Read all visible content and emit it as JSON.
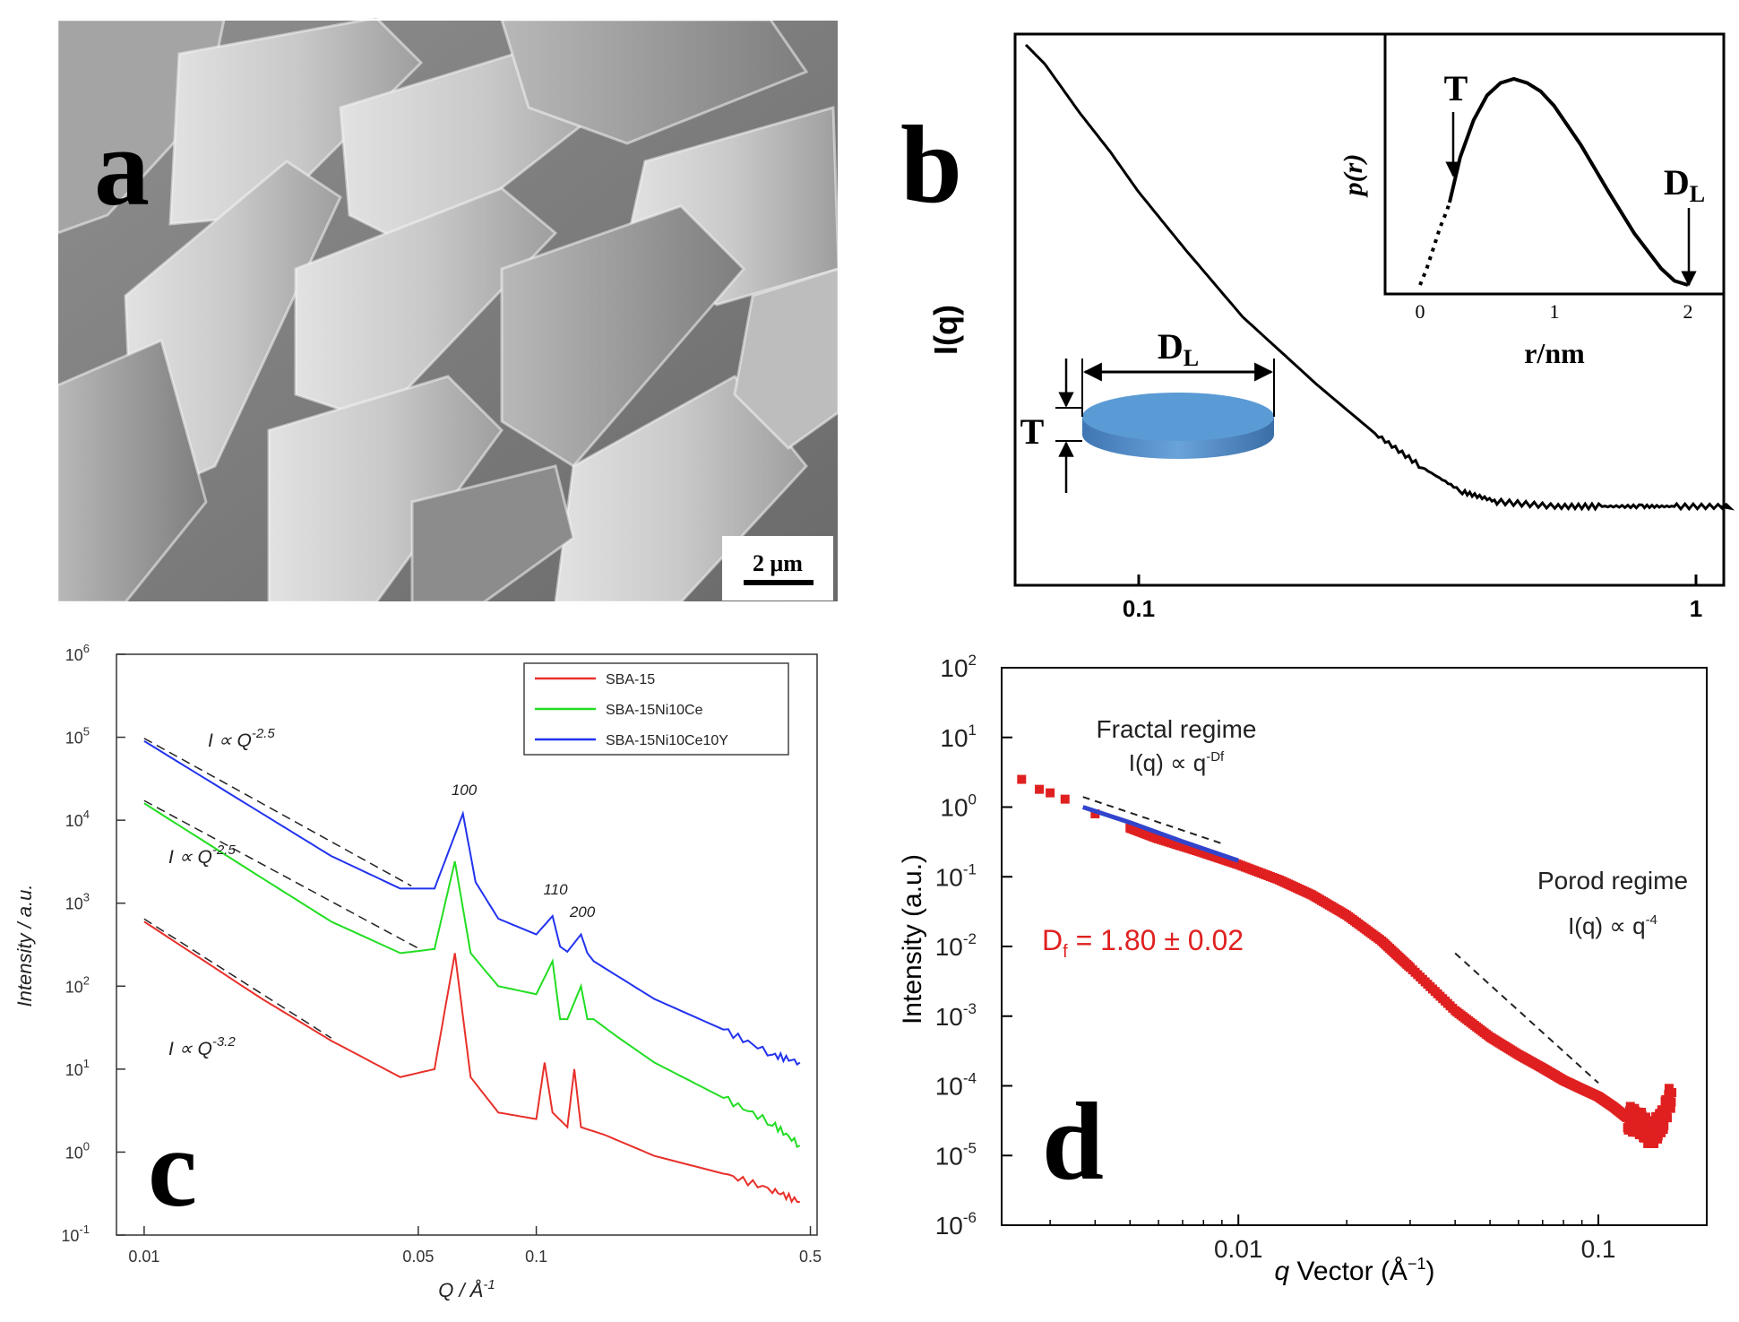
{
  "panels": {
    "a": {
      "letter": "a",
      "scale_bar": "2 μm",
      "image_name": "SEM micrograph of platelet particles"
    },
    "b": {
      "letter": "b",
      "ylabel": "I(q)",
      "inset": {
        "ylabel": "p(r)",
        "xlabel": "r/nm",
        "x_ticks": [
          "0",
          "1",
          "2"
        ],
        "label_T": "T",
        "label_DL": "D",
        "label_DL_sub": "L"
      },
      "disk": {
        "label_DL": "D",
        "label_DL_sub": "L",
        "label_T": "T",
        "color": "#5b9bd5"
      }
    },
    "c": {
      "letter": "c",
      "ylabel": "Intensity / a.u.",
      "xlabel": "Q / Å",
      "xlabel_exp": "-1",
      "y_ticks": [
        {
          "base": "10",
          "exp": "6"
        },
        {
          "base": "10",
          "exp": "5"
        },
        {
          "base": "10",
          "exp": "4"
        },
        {
          "base": "10",
          "exp": "3"
        },
        {
          "base": "10",
          "exp": "2"
        },
        {
          "base": "10",
          "exp": "1"
        },
        {
          "base": "10",
          "exp": "0"
        },
        {
          "base": "10",
          "exp": "-1"
        }
      ],
      "x_ticks": [
        "0.01",
        "0.05",
        "0.1",
        "0.5"
      ],
      "annotations": [
        {
          "text": "I ∝ Q",
          "exp": "-2.5"
        },
        {
          "text": "I ∝ Q",
          "exp": "-2.5"
        },
        {
          "text": "I ∝ Q",
          "exp": "-3.2"
        }
      ],
      "peak_labels": [
        "100",
        "110",
        "200"
      ],
      "legend": [
        {
          "name": "SBA-15",
          "color": "#e8302a"
        },
        {
          "name": "SBA-15Ni10Ce",
          "color": "#22dd22"
        },
        {
          "name": "SBA-15Ni10Ce10Y",
          "color": "#2233ee"
        }
      ]
    },
    "d": {
      "letter": "d",
      "ylabel": "Intensity (a.u.)",
      "xlabel_q": "q",
      "xlabel_rest": " Vector (Å",
      "xlabel_exp": "−1",
      "xlabel_close": ")",
      "y_ticks": [
        {
          "base": "10",
          "exp": "2"
        },
        {
          "base": "10",
          "exp": "1"
        },
        {
          "base": "10",
          "exp": "0"
        },
        {
          "base": "10",
          "exp": "-1"
        },
        {
          "base": "10",
          "exp": "-2"
        },
        {
          "base": "10",
          "exp": "-3"
        },
        {
          "base": "10",
          "exp": "-4"
        },
        {
          "base": "10",
          "exp": "-5"
        },
        {
          "base": "10",
          "exp": "-6"
        }
      ],
      "x_ticks": [
        "0.01",
        "0.1"
      ],
      "fractal_title": "Fractal regime",
      "fractal_law": "I(q) ∝ q",
      "fractal_exp": "-Df",
      "porod_title": "Porod regime",
      "porod_law": "I(q) ∝ q",
      "porod_exp": "-4",
      "df_label": "D",
      "df_sub": "f",
      "df_value": " = 1.80 ± 0.02",
      "data_color": "#e02020",
      "fit_color": "#3344cc"
    }
  },
  "chart_data": [
    {
      "panel": "b",
      "type": "line",
      "title": "",
      "xlabel": "",
      "ylabel": "I(q)",
      "xscale": "log",
      "xlim": [
        0.065,
        1.0
      ],
      "x_ticks": [
        0.1,
        1
      ],
      "series": [
        {
          "name": "I(q)",
          "x": [
            0.065,
            0.07,
            0.08,
            0.09,
            0.1,
            0.12,
            0.15,
            0.2,
            0.25,
            0.3,
            0.35,
            0.4,
            0.5,
            0.6,
            0.7,
            0.8,
            1.0
          ],
          "y": [
            1.0,
            0.96,
            0.86,
            0.78,
            0.7,
            0.58,
            0.44,
            0.3,
            0.2,
            0.13,
            0.08,
            0.06,
            0.05,
            0.05,
            0.05,
            0.05,
            0.05
          ]
        }
      ],
      "inset": {
        "type": "line",
        "xlabel": "r/nm",
        "ylabel": "p(r)",
        "xlim": [
          -0.3,
          2.2
        ],
        "x_ticks": [
          0,
          1,
          2
        ],
        "series": [
          {
            "name": "p(r) measured",
            "style": "solid",
            "x": [
              0.22,
              0.3,
              0.4,
              0.5,
              0.6,
              0.7,
              0.8,
              0.9,
              1.0,
              1.2,
              1.4,
              1.6,
              1.8,
              1.9,
              2.0
            ],
            "y": [
              0.4,
              0.62,
              0.8,
              0.92,
              0.98,
              1.0,
              0.98,
              0.94,
              0.87,
              0.68,
              0.46,
              0.25,
              0.08,
              0.02,
              0.0
            ]
          },
          {
            "name": "p(r) extrapolated",
            "style": "dotted",
            "x": [
              0.0,
              0.05,
              0.1,
              0.15,
              0.2,
              0.22
            ],
            "y": [
              0.0,
              0.08,
              0.18,
              0.28,
              0.36,
              0.4
            ]
          }
        ],
        "markers": [
          {
            "label": "T",
            "x": 0.22
          },
          {
            "label": "DL",
            "x": 2.0
          }
        ]
      }
    },
    {
      "panel": "c",
      "type": "line",
      "title": "",
      "xlabel": "Q / Å^-1",
      "ylabel": "Intensity / a.u.",
      "xscale": "log",
      "yscale": "log",
      "xlim": [
        0.0085,
        0.52
      ],
      "ylim": [
        0.1,
        1000000
      ],
      "series": [
        {
          "name": "SBA-15",
          "color": "#e8302a",
          "x": [
            0.01,
            0.02,
            0.03,
            0.045,
            0.055,
            0.062,
            0.068,
            0.08,
            0.1,
            0.105,
            0.11,
            0.12,
            0.125,
            0.13,
            0.15,
            0.2,
            0.3,
            0.4,
            0.47
          ],
          "y": [
            600,
            70,
            22,
            8,
            10,
            250,
            8,
            3,
            2.5,
            12,
            3,
            2,
            10,
            2,
            1.6,
            0.9,
            0.55,
            0.35,
            0.25
          ]
        },
        {
          "name": "SBA-15Ni10Ce",
          "color": "#22dd22",
          "x": [
            0.01,
            0.02,
            0.03,
            0.045,
            0.055,
            0.062,
            0.068,
            0.08,
            0.1,
            0.11,
            0.115,
            0.12,
            0.13,
            0.135,
            0.14,
            0.16,
            0.2,
            0.3,
            0.4,
            0.47
          ],
          "y": [
            16000,
            2000,
            600,
            250,
            280,
            3200,
            250,
            100,
            80,
            200,
            40,
            40,
            100,
            40,
            40,
            25,
            12,
            4.5,
            2.2,
            1.2
          ]
        },
        {
          "name": "SBA-15Ni10Ce10Y",
          "color": "#2233ee",
          "x": [
            0.01,
            0.02,
            0.03,
            0.045,
            0.055,
            0.065,
            0.07,
            0.08,
            0.1,
            0.11,
            0.115,
            0.12,
            0.13,
            0.135,
            0.14,
            0.2,
            0.3,
            0.4,
            0.47
          ],
          "y": [
            90000,
            12000,
            3700,
            1500,
            1500,
            12000,
            1800,
            650,
            420,
            700,
            300,
            260,
            420,
            250,
            200,
            70,
            30,
            15,
            12
          ]
        }
      ],
      "fits": [
        {
          "label": "I ∝ Q^-2.5",
          "series": "SBA-15Ni10Ce10Y",
          "xrange": [
            0.01,
            0.048
          ]
        },
        {
          "label": "I ∝ Q^-2.5",
          "series": "SBA-15Ni10Ce",
          "xrange": [
            0.01,
            0.05
          ]
        },
        {
          "label": "I ∝ Q^-3.2",
          "series": "SBA-15",
          "xrange": [
            0.01,
            0.03
          ]
        }
      ],
      "peaks": [
        {
          "label": "100",
          "x": 0.065
        },
        {
          "label": "110",
          "x": 0.113
        },
        {
          "label": "200",
          "x": 0.13
        }
      ],
      "legend_position": "top-right"
    },
    {
      "panel": "d",
      "type": "scatter",
      "title": "",
      "xlabel": "q Vector (Å^-1)",
      "ylabel": "Intensity (a.u.)",
      "xscale": "log",
      "yscale": "log",
      "xlim": [
        0.0022,
        0.2
      ],
      "ylim": [
        1e-06,
        100
      ],
      "series": [
        {
          "name": "data",
          "color": "#e02020",
          "x": [
            0.0025,
            0.0028,
            0.003,
            0.0033,
            0.004,
            0.005,
            0.006,
            0.008,
            0.01,
            0.013,
            0.016,
            0.02,
            0.025,
            0.03,
            0.04,
            0.05,
            0.06,
            0.07,
            0.08,
            0.09,
            0.1,
            0.11,
            0.12,
            0.13,
            0.14,
            0.15,
            0.16
          ],
          "y": [
            2.5,
            1.8,
            1.6,
            1.3,
            0.8,
            0.5,
            0.35,
            0.22,
            0.15,
            0.09,
            0.055,
            0.028,
            0.012,
            0.005,
            0.0012,
            0.0005,
            0.00028,
            0.00018,
            0.00012,
            9e-05,
            7e-05,
            5e-05,
            3.5e-05,
            3e-05,
            2e-05,
            3e-05,
            8e-05
          ]
        },
        {
          "name": "fractal fit",
          "color": "#3344cc",
          "x": [
            0.0037,
            0.005,
            0.007,
            0.01
          ],
          "y": [
            1.0,
            0.6,
            0.32,
            0.17
          ]
        }
      ],
      "guide_lines": [
        {
          "label": "I(q) ∝ q^-Df",
          "x": [
            0.0037,
            0.009
          ],
          "y": [
            1.4,
            0.3
          ]
        },
        {
          "label": "I(q) ∝ q^-4",
          "x": [
            0.04,
            0.1
          ],
          "y": [
            0.008,
            0.00011
          ]
        }
      ],
      "annotation": "Df = 1.80 ± 0.02"
    }
  ]
}
